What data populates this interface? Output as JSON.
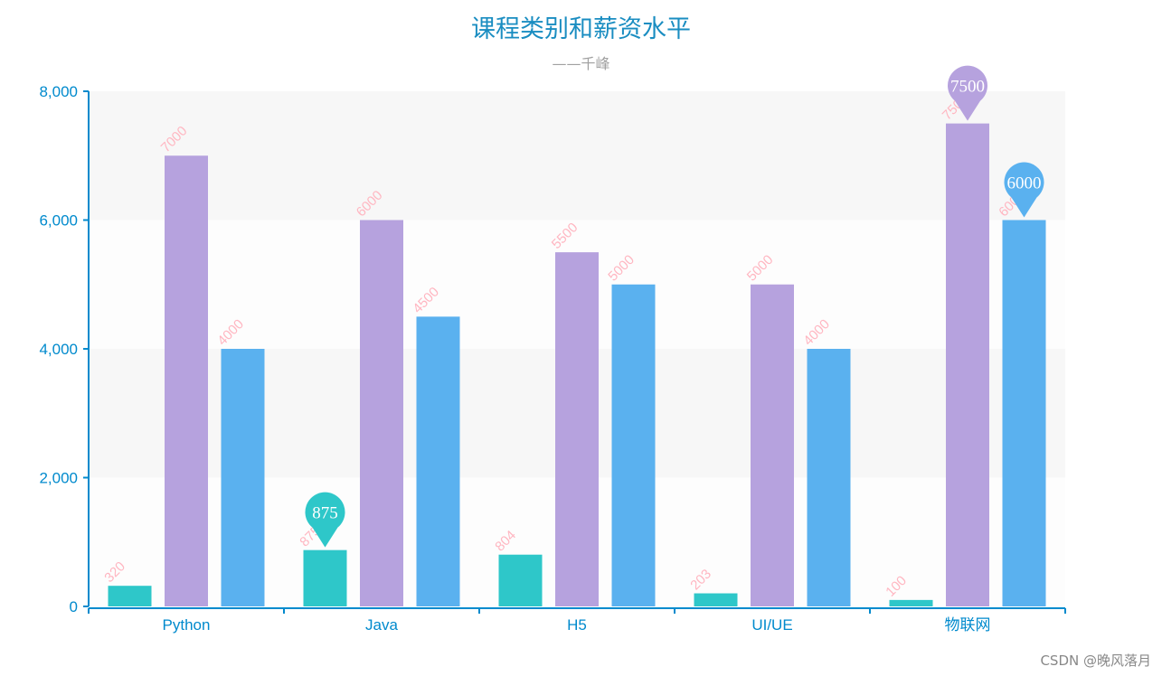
{
  "chart_data": {
    "type": "bar",
    "title": "课程类别和薪资水平",
    "subtitle": "——千峰",
    "categories": [
      "Python",
      "Java",
      "H5",
      "UI/UE",
      "物联网"
    ],
    "series": [
      {
        "values": [
          320,
          875,
          804,
          203,
          100
        ],
        "color": "#2ec7c9",
        "max_marker_category": "Java"
      },
      {
        "values": [
          7000,
          6000,
          5500,
          5000,
          7500
        ],
        "color": "#b6a2de",
        "max_marker_category": "物联网"
      },
      {
        "values": [
          4000,
          4500,
          5000,
          4000,
          6000
        ],
        "color": "#5ab1ef",
        "max_marker_category": "物联网"
      }
    ],
    "ylim": [
      0,
      8000
    ],
    "yticks": [
      "0",
      "2,000",
      "4,000",
      "6,000",
      "8,000"
    ],
    "ytick_values": [
      0,
      2000,
      4000,
      6000,
      8000
    ],
    "data_label_color": "#ffb6c1",
    "axis_color": "#008acd",
    "grid": "alternating bands",
    "legend": "none"
  },
  "watermark": "CSDN @晚风落月"
}
